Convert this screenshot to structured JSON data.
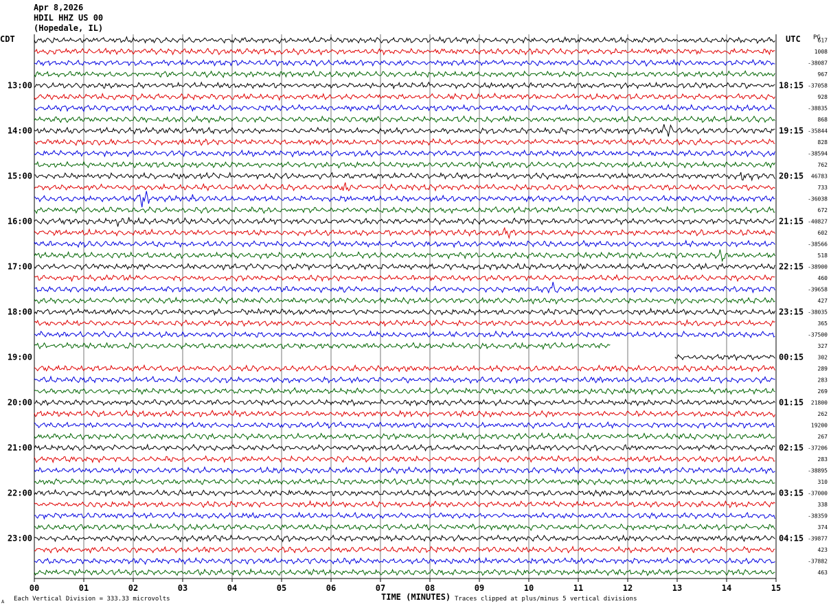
{
  "header": {
    "date": "Apr 8,2026",
    "station": "HDIL HHZ US 00",
    "location": "(Hopedale, IL)"
  },
  "labels": {
    "left_tz": "CDT",
    "right_tz": "UTC",
    "right_corner": "PG",
    "x_title": "TIME (MINUTES)",
    "footer_scale": "Each Vertical Division =  333.33 microvolts",
    "footer_clip": "Traces clipped at plus/minus 5 vertical divisions",
    "footer_mark": "A"
  },
  "colors": {
    "trace_cycle": [
      "#000000",
      "#e00000",
      "#0000e0",
      "#006400"
    ],
    "grid": "#000000"
  },
  "chart_data": {
    "type": "line",
    "title": "HDIL HHZ US 00 (Hopedale, IL)",
    "xlabel": "TIME (MINUTES)",
    "xlim": [
      0,
      15
    ],
    "x_ticks": [
      "00",
      "01",
      "02",
      "03",
      "04",
      "05",
      "06",
      "07",
      "08",
      "09",
      "10",
      "11",
      "12",
      "13",
      "14",
      "15"
    ],
    "grid": true,
    "trace_minutes": 15,
    "n_traces": 48,
    "left_hour_labels": [
      "13:00",
      "14:00",
      "15:00",
      "16:00",
      "17:00",
      "18:00",
      "19:00",
      "20:00",
      "21:00",
      "22:00",
      "23:00"
    ],
    "right_hour_labels": [
      "18:15",
      "19:15",
      "20:15",
      "21:15",
      "22:15",
      "23:15",
      "00:15",
      "01:15",
      "02:15",
      "03:15",
      "04:15"
    ],
    "right_trace_values": [
      "617",
      "1008",
      "-38087",
      "967",
      "-37058",
      "928",
      "-38835",
      "868",
      "-35844",
      "828",
      "-38594",
      "762",
      "46783",
      "733",
      "-36038",
      "672",
      "-40827",
      "602",
      "-38566",
      "518",
      "-38900",
      "460",
      "-39658",
      "427",
      "-38035",
      "365",
      "-37500",
      "327",
      "302",
      "289",
      "283",
      "269",
      "21800",
      "262",
      "19200",
      "267",
      "-37206",
      "283",
      "-38895",
      "310",
      "-37000",
      "338",
      "-38359",
      "374",
      "-39877",
      "423",
      "-37882",
      "463"
    ],
    "gaps": [
      {
        "trace": 27,
        "from_min": 11.65,
        "to_min": 15.0
      },
      {
        "trace": 28,
        "from_min": 0.0,
        "to_min": 12.95
      }
    ],
    "event_bursts": [
      {
        "trace": 8,
        "at_min": 12.8,
        "amp": 2.2
      },
      {
        "trace": 14,
        "at_min": 2.2,
        "amp": 2.0
      },
      {
        "trace": 14,
        "at_min": 3.2,
        "amp": 1.6
      },
      {
        "trace": 13,
        "at_min": 6.3,
        "amp": 1.6
      },
      {
        "trace": 16,
        "at_min": 1.8,
        "amp": 1.6
      },
      {
        "trace": 22,
        "at_min": 10.5,
        "amp": 1.8
      },
      {
        "trace": 19,
        "at_min": 13.9,
        "amp": 1.5
      },
      {
        "trace": 12,
        "at_min": 14.4,
        "amp": 1.5
      },
      {
        "trace": 17,
        "at_min": 9.5,
        "amp": 1.4
      }
    ],
    "amplitude_divisions": 1
  }
}
